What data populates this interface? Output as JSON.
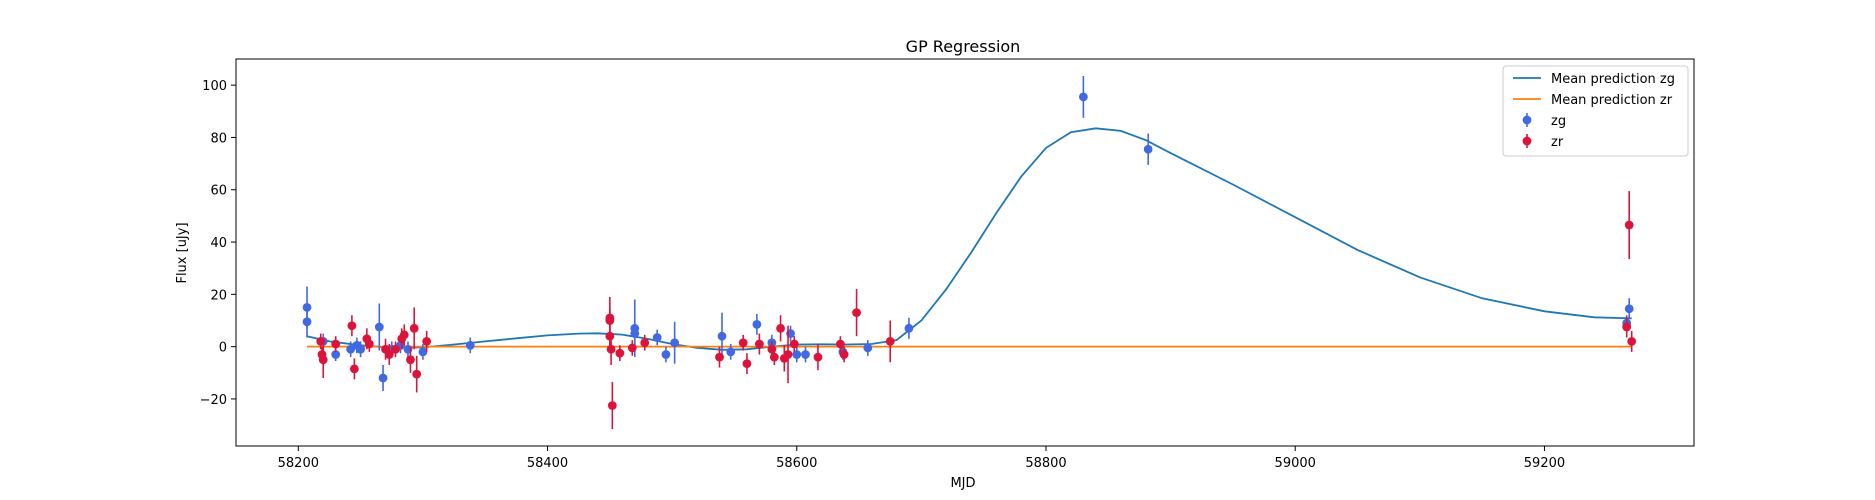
{
  "chart_data": {
    "type": "scatter",
    "title": "GP Regression",
    "xlabel": "MJD",
    "ylabel": "Flux [uJy]",
    "xlim": [
      58150,
      59320
    ],
    "ylim": [
      -38,
      110
    ],
    "xticks": [
      58200,
      58400,
      58600,
      58800,
      59000,
      59200
    ],
    "yticks": [
      -20,
      0,
      20,
      40,
      60,
      80,
      100
    ],
    "grid": false,
    "legend_position": "top-right",
    "series": [
      {
        "name": "Mean prediction zg",
        "kind": "line",
        "color": "#1f77b4",
        "points": [
          [
            58207,
            4
          ],
          [
            58225,
            2
          ],
          [
            58250,
            0.5
          ],
          [
            58275,
            -0.5
          ],
          [
            58300,
            -0.3
          ],
          [
            58325,
            0.8
          ],
          [
            58350,
            2
          ],
          [
            58375,
            3.2
          ],
          [
            58400,
            4.3
          ],
          [
            58425,
            5
          ],
          [
            58440,
            5.1
          ],
          [
            58460,
            4.6
          ],
          [
            58480,
            3
          ],
          [
            58500,
            1
          ],
          [
            58520,
            -0.5
          ],
          [
            58540,
            -1.2
          ],
          [
            58560,
            -1
          ],
          [
            58580,
            0
          ],
          [
            58600,
            0.8
          ],
          [
            58620,
            0.9
          ],
          [
            58640,
            0.8
          ],
          [
            58660,
            1
          ],
          [
            58680,
            2.5
          ],
          [
            58700,
            10
          ],
          [
            58720,
            22
          ],
          [
            58740,
            36
          ],
          [
            58760,
            51
          ],
          [
            58780,
            65
          ],
          [
            58800,
            76
          ],
          [
            58820,
            82
          ],
          [
            58840,
            83.5
          ],
          [
            58860,
            82.5
          ],
          [
            58880,
            79
          ],
          [
            58900,
            74
          ],
          [
            58950,
            62
          ],
          [
            59000,
            49.5
          ],
          [
            59050,
            37
          ],
          [
            59100,
            26.5
          ],
          [
            59150,
            18.5
          ],
          [
            59200,
            13.5
          ],
          [
            59240,
            11.2
          ],
          [
            59270,
            10.8
          ]
        ]
      },
      {
        "name": "Mean prediction zr",
        "kind": "line",
        "color": "#ff7f0e",
        "points": [
          [
            58207,
            0
          ],
          [
            59270,
            0
          ]
        ]
      },
      {
        "name": "zg",
        "kind": "errorbar",
        "color": "#4169e1",
        "points": [
          {
            "x": 58207,
            "y": 15,
            "err": 8
          },
          {
            "x": 58207,
            "y": 9.5,
            "err": 6
          },
          {
            "x": 58220,
            "y": 2,
            "err": 3
          },
          {
            "x": 58230,
            "y": -3,
            "err": 2.5
          },
          {
            "x": 58242,
            "y": -1,
            "err": 3
          },
          {
            "x": 58247,
            "y": 0.5,
            "err": 3
          },
          {
            "x": 58250,
            "y": -1,
            "err": 3
          },
          {
            "x": 58265,
            "y": 7.5,
            "err": 9
          },
          {
            "x": 58268,
            "y": -12,
            "err": 5
          },
          {
            "x": 58275,
            "y": -1,
            "err": 3
          },
          {
            "x": 58282,
            "y": 0.5,
            "err": 3
          },
          {
            "x": 58288,
            "y": -1,
            "err": 3
          },
          {
            "x": 58300,
            "y": -2,
            "err": 3
          },
          {
            "x": 58338,
            "y": 0.5,
            "err": 3
          },
          {
            "x": 58470,
            "y": 7,
            "err": 11
          },
          {
            "x": 58470,
            "y": 5,
            "err": 5
          },
          {
            "x": 58488,
            "y": 3.5,
            "err": 3
          },
          {
            "x": 58495,
            "y": -3,
            "err": 3
          },
          {
            "x": 58502,
            "y": 1.5,
            "err": 8
          },
          {
            "x": 58540,
            "y": 4,
            "err": 9
          },
          {
            "x": 58547,
            "y": -2,
            "err": 3
          },
          {
            "x": 58568,
            "y": 8.5,
            "err": 4
          },
          {
            "x": 58580,
            "y": 1.5,
            "err": 3
          },
          {
            "x": 58595,
            "y": 5,
            "err": 3
          },
          {
            "x": 58600,
            "y": -3,
            "err": 3
          },
          {
            "x": 58607,
            "y": -3,
            "err": 3
          },
          {
            "x": 58637,
            "y": -2,
            "err": 3
          },
          {
            "x": 58657,
            "y": -0.5,
            "err": 3
          },
          {
            "x": 58690,
            "y": 7,
            "err": 4
          },
          {
            "x": 58830,
            "y": 95.5,
            "err": 8
          },
          {
            "x": 58882,
            "y": 75.5,
            "err": 6
          },
          {
            "x": 59268,
            "y": 14.5,
            "err": 4
          },
          {
            "x": 59266,
            "y": 9,
            "err": 3
          }
        ]
      },
      {
        "name": "zr",
        "kind": "errorbar",
        "color": "#dc143c",
        "points": [
          {
            "x": 58218,
            "y": 2,
            "err": 3
          },
          {
            "x": 58219,
            "y": -3,
            "err": 3
          },
          {
            "x": 58220,
            "y": -5,
            "err": 7
          },
          {
            "x": 58230,
            "y": 1,
            "err": 3
          },
          {
            "x": 58243,
            "y": 8,
            "err": 4
          },
          {
            "x": 58245,
            "y": -8.5,
            "err": 4
          },
          {
            "x": 58255,
            "y": 3,
            "err": 4
          },
          {
            "x": 58257,
            "y": 1,
            "err": 3
          },
          {
            "x": 58270,
            "y": -1,
            "err": 4
          },
          {
            "x": 58273,
            "y": -3,
            "err": 4
          },
          {
            "x": 58278,
            "y": -1,
            "err": 3
          },
          {
            "x": 58283,
            "y": 3,
            "err": 4
          },
          {
            "x": 58285,
            "y": 4.5,
            "err": 4
          },
          {
            "x": 58290,
            "y": -5,
            "err": 5
          },
          {
            "x": 58293,
            "y": 7,
            "err": 8
          },
          {
            "x": 58295,
            "y": -10.5,
            "err": 7
          },
          {
            "x": 58303,
            "y": 2,
            "err": 4
          },
          {
            "x": 58450,
            "y": 11,
            "err": 8
          },
          {
            "x": 58450,
            "y": 10,
            "err": 5
          },
          {
            "x": 58450,
            "y": 4,
            "err": 5
          },
          {
            "x": 58451,
            "y": -1,
            "err": 6
          },
          {
            "x": 58452,
            "y": -22.5,
            "err": 9
          },
          {
            "x": 58458,
            "y": -2.5,
            "err": 3
          },
          {
            "x": 58468,
            "y": -0.5,
            "err": 3
          },
          {
            "x": 58478,
            "y": 1.5,
            "err": 3
          },
          {
            "x": 58538,
            "y": -4,
            "err": 4
          },
          {
            "x": 58557,
            "y": 1.5,
            "err": 3
          },
          {
            "x": 58560,
            "y": -6.5,
            "err": 4
          },
          {
            "x": 58570,
            "y": 1,
            "err": 4
          },
          {
            "x": 58580,
            "y": -1,
            "err": 3
          },
          {
            "x": 58582,
            "y": -4,
            "err": 3
          },
          {
            "x": 58587,
            "y": 7,
            "err": 5
          },
          {
            "x": 58590,
            "y": -4.5,
            "err": 5
          },
          {
            "x": 58593,
            "y": -3,
            "err": 11
          },
          {
            "x": 58598,
            "y": 1,
            "err": 3
          },
          {
            "x": 58617,
            "y": -4,
            "err": 5
          },
          {
            "x": 58635,
            "y": 1,
            "err": 3
          },
          {
            "x": 58638,
            "y": -3,
            "err": 3
          },
          {
            "x": 58648,
            "y": 13,
            "err": 9
          },
          {
            "x": 58675,
            "y": 2,
            "err": 8
          },
          {
            "x": 59268,
            "y": 46.5,
            "err": 13
          },
          {
            "x": 59266,
            "y": 7.5,
            "err": 4
          },
          {
            "x": 59270,
            "y": 2,
            "err": 4
          }
        ]
      }
    ]
  }
}
